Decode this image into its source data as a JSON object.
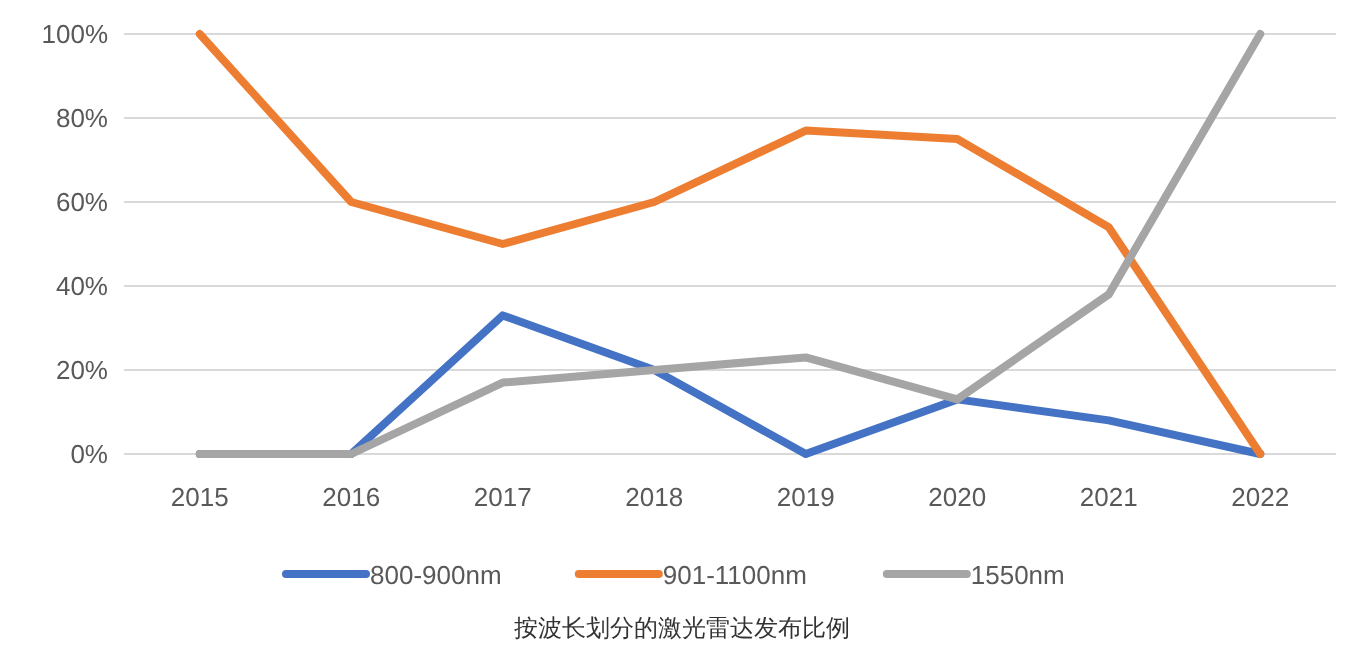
{
  "chart_data": {
    "type": "line",
    "categories": [
      "2015",
      "2016",
      "2017",
      "2018",
      "2019",
      "2020",
      "2021",
      "2022"
    ],
    "series": [
      {
        "name": "800-900nm",
        "color": "#4472c4",
        "values": [
          0,
          0,
          33,
          20,
          0,
          13,
          8,
          0
        ]
      },
      {
        "name": "901-1100nm",
        "color": "#ed7d31",
        "values": [
          100,
          60,
          50,
          60,
          77,
          75,
          54,
          0
        ]
      },
      {
        "name": "1550nm",
        "color": "#a5a5a5",
        "values": [
          0,
          0,
          17,
          20,
          23,
          13,
          38,
          100
        ]
      }
    ],
    "ylim": [
      0,
      100
    ],
    "yticks": [
      {
        "value": 0,
        "label": "0%"
      },
      {
        "value": 20,
        "label": "20%"
      },
      {
        "value": 40,
        "label": "40%"
      },
      {
        "value": 60,
        "label": "60%"
      },
      {
        "value": 80,
        "label": "80%"
      },
      {
        "value": 100,
        "label": "100%"
      }
    ],
    "grid": "y",
    "legend": "bottom",
    "marker": "none",
    "line_style": "solid",
    "annotations": [
      "按波长划分的激光雷达发布比例"
    ]
  }
}
